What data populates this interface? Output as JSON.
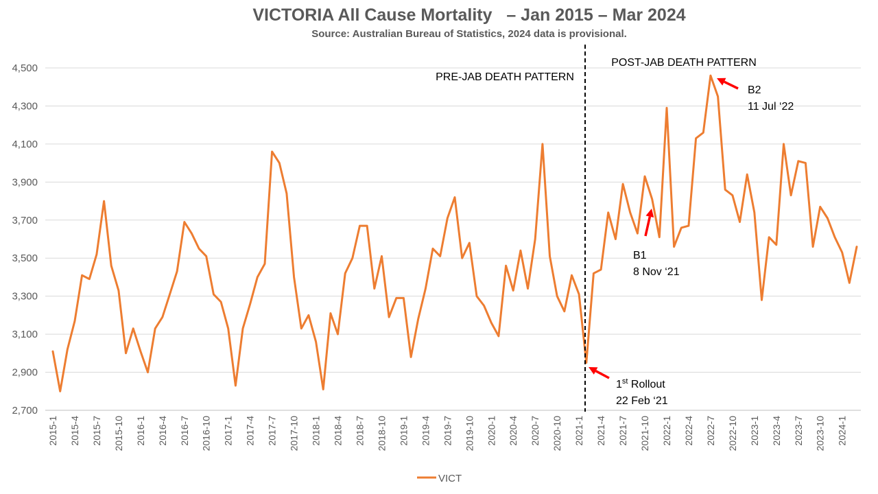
{
  "chart_data": {
    "type": "line",
    "title": "VICTORIA All Cause Mortality   – Jan 2015 – Mar 2024",
    "subtitle": "Source: Australian Bureau of Statistics, 2024 data is provisional.",
    "xlabel": "",
    "ylabel": "",
    "ylim": [
      2700,
      4500
    ],
    "yticks": [
      "2,700",
      "2,900",
      "3,100",
      "3,300",
      "3,500",
      "3,700",
      "3,900",
      "4,100",
      "4,300",
      "4,500"
    ],
    "grid": true,
    "legend_position": "bottom",
    "x_tick_labels": [
      "2015-1",
      "2015-4",
      "2015-7",
      "2015-10",
      "2016-1",
      "2016-4",
      "2016-7",
      "2016-10",
      "2017-1",
      "2017-4",
      "2017-7",
      "2017-10",
      "2018-1",
      "2018-4",
      "2018-7",
      "2018-10",
      "2019-1",
      "2019-4",
      "2019-7",
      "2019-10",
      "2020-1",
      "2020-4",
      "2020-7",
      "2020-10",
      "2021-1",
      "2021-4",
      "2021-7",
      "2021-10",
      "2022-1",
      "2022-4",
      "2022-7",
      "2022-10",
      "2023-1",
      "2023-4",
      "2023-7",
      "2023-10",
      "2024-1"
    ],
    "series": [
      {
        "name": "VICT",
        "color": "#ED7D31",
        "values": [
          3010,
          2800,
          3020,
          3170,
          3410,
          3390,
          3520,
          3800,
          3460,
          3330,
          3000,
          3130,
          3010,
          2900,
          3130,
          3190,
          3310,
          3430,
          3690,
          3630,
          3550,
          3510,
          3310,
          3270,
          3130,
          2830,
          3130,
          3260,
          3400,
          3470,
          4060,
          4000,
          3840,
          3400,
          3130,
          3200,
          3060,
          2810,
          3210,
          3100,
          3420,
          3500,
          3670,
          3670,
          3340,
          3510,
          3190,
          3290,
          3290,
          2980,
          3180,
          3340,
          3550,
          3510,
          3710,
          3820,
          3500,
          3580,
          3300,
          3250,
          3160,
          3090,
          3460,
          3330,
          3540,
          3340,
          3600,
          4100,
          3510,
          3300,
          3220,
          3410,
          3310,
          2950,
          3420,
          3440,
          3740,
          3600,
          3890,
          3740,
          3630,
          3930,
          3810,
          3610,
          4290,
          3560,
          3660,
          3670,
          4130,
          4160,
          4460,
          4350,
          3860,
          3830,
          3690,
          3940,
          3740,
          3280,
          3610,
          3570,
          4100,
          3830,
          4010,
          4000,
          3560,
          3770,
          3710,
          3610,
          3530,
          3370,
          3560
        ]
      }
    ],
    "annotations": {
      "pre_label": "PRE-JAB DEATH PATTERN",
      "post_label": "POST-JAB DEATH PATTERN",
      "b1_title": "B1",
      "b1_date": "8 Nov ‘21",
      "b2_title": "B2",
      "b2_date": "11 Jul ‘22",
      "rollout_prefix": "1",
      "rollout_sup": "st",
      "rollout_word": " Rollout",
      "rollout_date": "22 Feb ‘21",
      "arrow_color": "#FF0000"
    }
  }
}
